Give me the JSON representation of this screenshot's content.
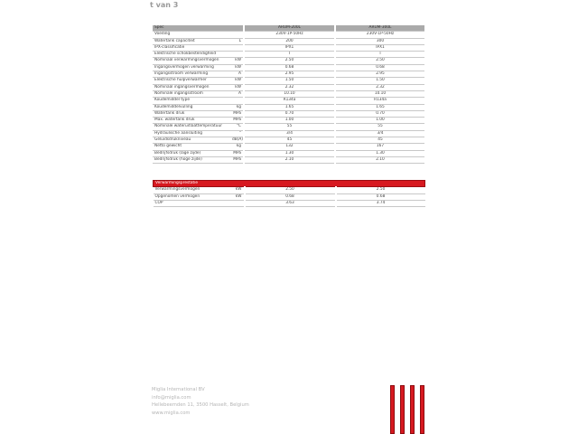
{
  "page_indicator": "t van 3",
  "spec_table": {
    "headers": [
      "Spec",
      "",
      "ARUM-200L",
      "ARUM-300L"
    ],
    "rows": [
      [
        "Voeding",
        "",
        "230V-1P-50Hz",
        "230V-1P-50Hz"
      ],
      [
        "Watertank capaciteit",
        "L",
        "200",
        "300"
      ],
      [
        "IPX-classificatie",
        "",
        "IPX1",
        "IPX1"
      ],
      [
        "Elektrische schokbestendigheid",
        "",
        "I",
        "I"
      ],
      [
        "Nominaal verwarmingsvermogen",
        "kW",
        "2.50",
        "2.50"
      ],
      [
        "Ingangsvermogen verwarming",
        "kW",
        "0.68",
        "0.68"
      ],
      [
        "Ingangsstroom verwarming",
        "A",
        "2.95",
        "2.95"
      ],
      [
        "Elektrische hulpverwarmer",
        "kW",
        "1.50",
        "1.50"
      ],
      [
        "Nominaal ingangsvermogen",
        "kW",
        "2.32",
        "2.32"
      ],
      [
        "Nominale ingangsstroom",
        "A",
        "10.10",
        "10.10"
      ],
      [
        "Koudemiddel type",
        "",
        "R134a",
        "R134a"
      ],
      [
        "Koudemiddelvulling",
        "kg",
        "1.65",
        "1.65"
      ],
      [
        "Watertank druk",
        "MPa",
        "0.70",
        "0.70"
      ],
      [
        "Max. watertank druk",
        "MPa",
        "1.00",
        "1.00"
      ],
      [
        "Nominale wateruitlaattemperatuur",
        "°C",
        "55",
        "55"
      ],
      [
        "Hydraulische aansluiting",
        "\"",
        "3/4",
        "3/4"
      ],
      [
        "Geluidsdrukniveau",
        "dB(A)",
        "45",
        "45"
      ],
      [
        "Netto gewicht",
        "kg",
        "132",
        "167"
      ],
      [
        "Bedrijfsdruk (lage zijde)",
        "MPa",
        "1.30",
        "1.30"
      ],
      [
        "Bedrijfsdruk (hoge zijde)",
        "MPa",
        "2.10",
        "2.10"
      ]
    ]
  },
  "performance_table": {
    "title": "Verwarmingsprestatie",
    "rows": [
      [
        "Verwarmingsvermogen",
        "kW",
        "2.50",
        "2.50"
      ],
      [
        "Opgenomen vermogen",
        "kW",
        "0.68",
        "0.68"
      ],
      [
        "COP",
        "",
        "3.63",
        "3.74"
      ]
    ]
  },
  "footer": {
    "company": "Miglia International BV",
    "email": "info@miglia.com",
    "address": "Hellebeemden 11, 3500 Hasselt, Belgium",
    "website": "www.miglia.com"
  },
  "colors": {
    "accent": "#d71920",
    "header_gray": "#aaaaaa"
  }
}
